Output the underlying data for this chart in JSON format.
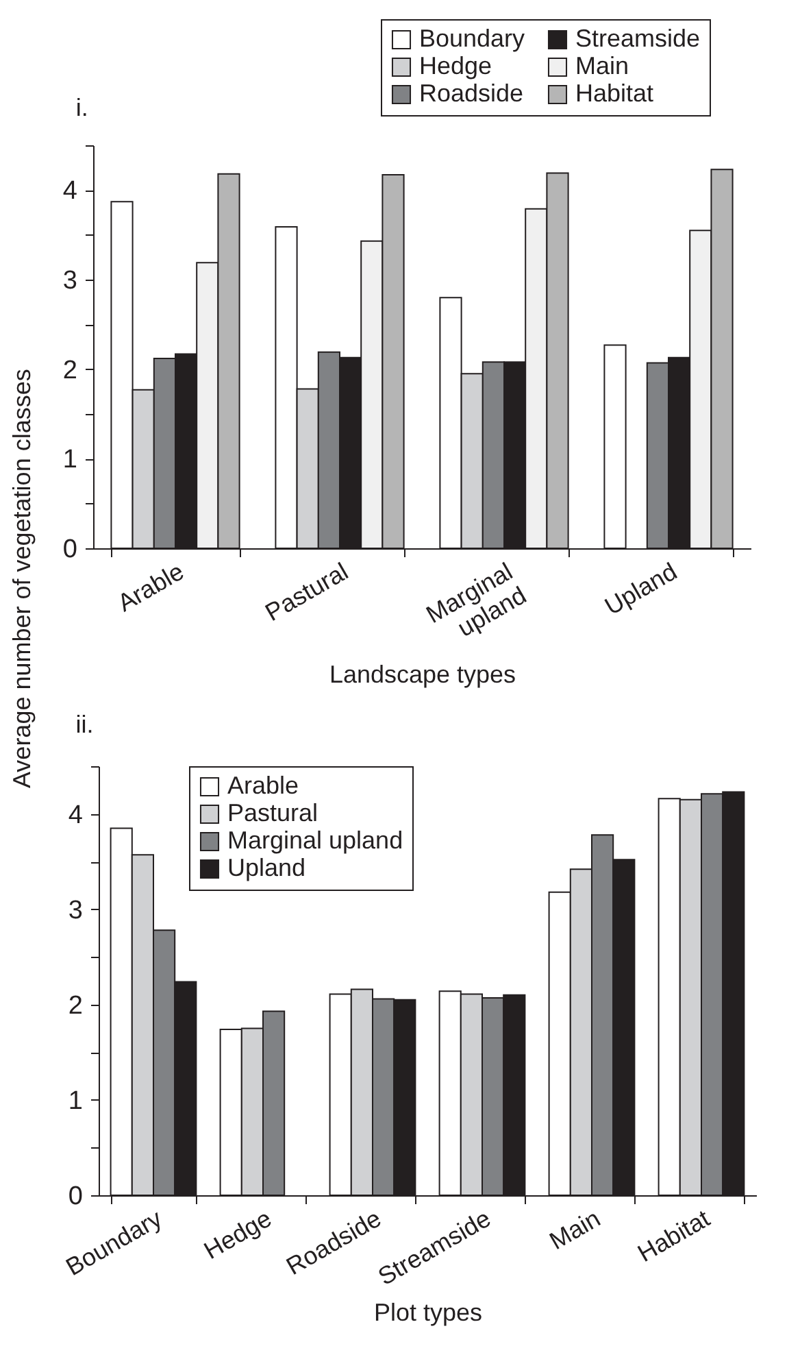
{
  "chart_data": [
    {
      "type": "bar",
      "title": "i.",
      "xlabel": "Landscape types",
      "ylabel": "Average number of vegetation classes",
      "categories": [
        "Arable",
        "Pastural",
        "Marginal upland",
        "Upland"
      ],
      "series": [
        {
          "name": "Boundary",
          "color": "#ffffff",
          "values": [
            3.87,
            3.59,
            2.8,
            2.27
          ]
        },
        {
          "name": "Hedge",
          "color": "#d0d1d3",
          "values": [
            1.77,
            1.78,
            1.95,
            null
          ]
        },
        {
          "name": "Roadside",
          "color": "#808285",
          "values": [
            2.12,
            2.19,
            2.08,
            2.07
          ]
        },
        {
          "name": "Streamside",
          "color": "#231f20",
          "values": [
            2.17,
            2.13,
            2.08,
            2.13
          ]
        },
        {
          "name": "Main",
          "color": "#f0f0f0",
          "values": [
            3.19,
            3.43,
            3.79,
            3.55
          ]
        },
        {
          "name": "Habitat",
          "color": "#b5b5b5",
          "values": [
            4.18,
            4.17,
            4.19,
            4.23
          ]
        }
      ],
      "ylim": [
        0,
        4.5
      ],
      "yticks": [
        0,
        {
          "value": 0.5,
          "label": null
        },
        1,
        {
          "value": 1.5,
          "label": null
        },
        2,
        {
          "value": 2.5,
          "label": null
        },
        3,
        {
          "value": 3.5,
          "label": null
        },
        4,
        {
          "value": 4.5,
          "label": null
        }
      ],
      "legend": "top right"
    },
    {
      "type": "bar",
      "title": "ii.",
      "xlabel": "Plot types",
      "categories": [
        "Boundary",
        "Hedge",
        "Roadside",
        "Streamside",
        "Main",
        "Habitat"
      ],
      "series": [
        {
          "name": "Arable",
          "color": "#ffffff",
          "values": [
            3.85,
            1.74,
            2.11,
            2.14,
            3.18,
            4.16
          ]
        },
        {
          "name": "Pastural",
          "color": "#d0d1d3",
          "values": [
            3.57,
            1.75,
            2.16,
            2.11,
            3.42,
            4.15
          ]
        },
        {
          "name": "Marginal upland",
          "color": "#808285",
          "values": [
            2.78,
            1.93,
            2.06,
            2.07,
            3.78,
            4.21
          ]
        },
        {
          "name": "Upland",
          "color": "#231f20",
          "values": [
            2.24,
            null,
            2.05,
            2.1,
            3.52,
            4.23
          ]
        }
      ],
      "ylim": [
        0,
        4.5
      ],
      "yticks": [
        0,
        {
          "value": 0.5,
          "label": null
        },
        1,
        {
          "value": 1.5,
          "label": null
        },
        2,
        {
          "value": 2.5,
          "label": null
        },
        3,
        {
          "value": 3.5,
          "label": null
        },
        4,
        {
          "value": 4.5,
          "label": null
        }
      ],
      "legend": "top left"
    }
  ]
}
